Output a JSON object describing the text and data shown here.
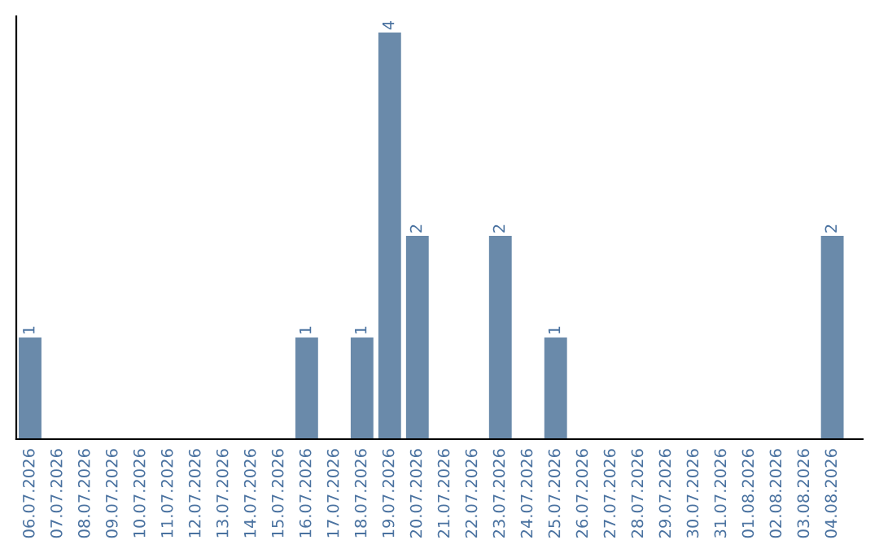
{
  "chart_data": {
    "type": "bar",
    "categories": [
      "06.07.2026",
      "07.07.2026",
      "08.07.2026",
      "09.07.2026",
      "10.07.2026",
      "11.07.2026",
      "12.07.2026",
      "13.07.2026",
      "14.07.2026",
      "15.07.2026",
      "16.07.2026",
      "17.07.2026",
      "18.07.2026",
      "19.07.2026",
      "20.07.2026",
      "21.07.2026",
      "22.07.2026",
      "23.07.2026",
      "24.07.2026",
      "25.07.2026",
      "26.07.2026",
      "27.07.2026",
      "28.07.2026",
      "29.07.2026",
      "30.07.2026",
      "31.07.2026",
      "01.08.2026",
      "02.08.2026",
      "03.08.2026",
      "04.08.2026"
    ],
    "values": [
      1,
      0,
      0,
      0,
      0,
      0,
      0,
      0,
      0,
      0,
      1,
      0,
      1,
      4,
      2,
      0,
      0,
      2,
      0,
      1,
      0,
      0,
      0,
      0,
      0,
      0,
      0,
      0,
      0,
      2
    ],
    "value_labels": [
      "1",
      null,
      null,
      null,
      null,
      null,
      null,
      null,
      null,
      null,
      "1",
      null,
      "1",
      "4",
      "2",
      null,
      null,
      "2",
      null,
      "1",
      null,
      null,
      null,
      null,
      null,
      null,
      null,
      null,
      null,
      "2"
    ],
    "color": "#6a8aaa",
    "grid": false,
    "legend": false
  }
}
